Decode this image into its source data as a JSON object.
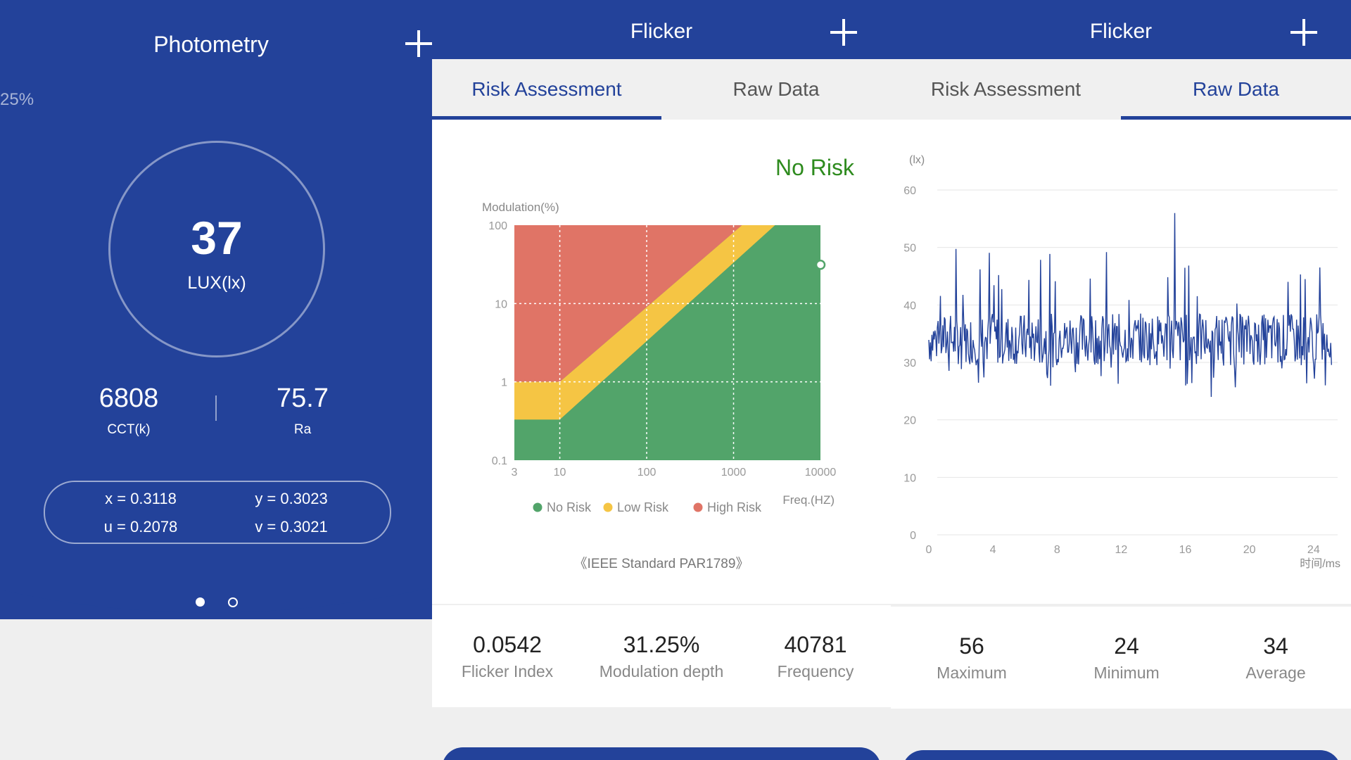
{
  "photometry": {
    "title": "Photometry",
    "left_edge_value": "25%",
    "lux_value": "37",
    "lux_unit": "LUX(lx)",
    "cct_value": "6808",
    "cct_label": "CCT(k)",
    "ra_value": "75.7",
    "ra_label": "Ra",
    "x_coord": "x = 0.3118",
    "y_coord": "y = 0.3023",
    "u_coord": "u = 0.2078",
    "v_coord": "v = 0.3021",
    "page_indicator": {
      "count": 2,
      "active": 0
    }
  },
  "flicker_risk": {
    "title": "Flicker",
    "tabs": [
      {
        "label": "Risk Assessment",
        "active": true
      },
      {
        "label": "Raw Data",
        "active": false
      }
    ],
    "status": "No Risk",
    "status_color": "#2e8b1e",
    "standard": "《IEEE Standard PAR1789》",
    "legend": [
      {
        "label": "No Risk",
        "color": "#52a46a"
      },
      {
        "label": "Low Risk",
        "color": "#f5c544"
      },
      {
        "label": "High Risk",
        "color": "#e07466"
      }
    ],
    "stats": [
      {
        "value": "0.0542",
        "label": "Flicker Index"
      },
      {
        "value": "31.25%",
        "label": "Modulation depth"
      },
      {
        "value": "40781",
        "label": "Frequency"
      }
    ]
  },
  "flicker_raw": {
    "title": "Flicker",
    "tabs": [
      {
        "label": "Risk Assessment",
        "active": false
      },
      {
        "label": "Raw Data",
        "active": true
      }
    ],
    "stats": [
      {
        "value": "56",
        "label": "Maximum"
      },
      {
        "value": "24",
        "label": "Minimum"
      },
      {
        "value": "34",
        "label": "Average"
      }
    ]
  },
  "chart_data": [
    {
      "type": "area",
      "title": "",
      "ylabel": "Modulation(%)",
      "xlabel": "Freq.(HZ)",
      "x_scale": "log",
      "y_scale": "log",
      "xlim": [
        3,
        10000
      ],
      "ylim": [
        0.1,
        100
      ],
      "x_ticks": [
        "3",
        "10",
        "100",
        "1000",
        "10000"
      ],
      "y_ticks": [
        "0.1",
        "1",
        "10",
        "100"
      ],
      "grid": true,
      "regions": [
        {
          "name": "No Risk",
          "color": "#52a46a"
        },
        {
          "name": "Low Risk",
          "color": "#f5c544"
        },
        {
          "name": "High Risk",
          "color": "#e07466"
        }
      ],
      "boundaries": {
        "low_risk_lower": [
          [
            3,
            0.1
          ],
          [
            3,
            0.33
          ],
          [
            10,
            0.33
          ],
          [
            3000,
            100
          ]
        ],
        "low_risk_upper": [
          [
            3,
            1.0
          ],
          [
            10,
            1.0
          ],
          [
            1250,
            100
          ]
        ]
      },
      "marker": {
        "x": 10000,
        "y": 31.25
      }
    },
    {
      "type": "line",
      "title": "",
      "ylabel": "(lx)",
      "xlabel": "时间/ms",
      "xlim": [
        0,
        25.5
      ],
      "ylim": [
        0,
        60
      ],
      "x_ticks": [
        "0",
        "4",
        "8",
        "12",
        "16",
        "20",
        "24"
      ],
      "y_ticks": [
        "0",
        "10",
        "20",
        "30",
        "40",
        "50",
        "60"
      ],
      "grid": true,
      "series": [
        {
          "color": "#23429a",
          "min": 24,
          "max": 56,
          "average": 34,
          "sample_count": 520
        }
      ]
    }
  ]
}
